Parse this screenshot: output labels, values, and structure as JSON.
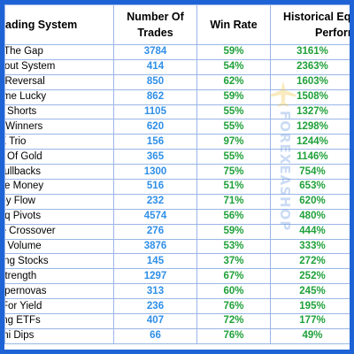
{
  "header": {
    "name": "ading System",
    "trades_line1": "Number Of",
    "trades_line2": "Trades",
    "win": "Win Rate",
    "perf_line1": "Historical Equity",
    "perf_line2": "Performan"
  },
  "rows": [
    {
      "name": "rading The Gap",
      "trades": "3784",
      "win": "59%",
      "perf": "3161%"
    },
    {
      "name": "ete Breakout System",
      "trades": "414",
      "win": "54%",
      "perf": "2363%"
    },
    {
      "name": "ernight Reversal",
      "trades": "850",
      "win": "62%",
      "perf": "1603%"
    },
    {
      "name": "cond Time Lucky",
      "trades": "862",
      "win": "59%",
      "perf": "1508%"
    },
    {
      "name": "Micro Shorts",
      "trades": "1105",
      "win": "55%",
      "perf": "1327%"
    },
    {
      "name": "id Cap Winners",
      "trades": "620",
      "win": "55%",
      "perf": "1298%"
    },
    {
      "name": "VIX Trio",
      "trades": "156",
      "win": "97%",
      "perf": "1244%"
    },
    {
      "name": "uggets Of Gold",
      "trades": "365",
      "win": "55%",
      "perf": "1146%"
    },
    {
      "name": "ETF Pullbacks",
      "trades": "1300",
      "win": "75%",
      "perf": "754%"
    },
    {
      "name": "llow The Money",
      "trades": "516",
      "win": "51%",
      "perf": "653%"
    },
    {
      "name": "Money Flow",
      "trades": "232",
      "win": "71%",
      "perf": "620%"
    },
    {
      "name": "Nasdaq Pivots",
      "trades": "4574",
      "win": "56%",
      "perf": "480%"
    },
    {
      "name": "g Average Crossover",
      "trades": "276",
      "win": "59%",
      "perf": "444%"
    },
    {
      "name": "nusual Volume",
      "trades": "3876",
      "win": "53%",
      "perf": "333%"
    },
    {
      "name": "rry Picking Stocks",
      "trades": "145",
      "win": "37%",
      "perf": "272%"
    },
    {
      "name": "Bar Strength",
      "trades": "1297",
      "win": "67%",
      "perf": "252%"
    },
    {
      "name": "rting Supernovas",
      "trades": "313",
      "win": "60%",
      "perf": "245%"
    },
    {
      "name": "ading For Yield",
      "trades": "236",
      "win": "76%",
      "perf": "195%"
    },
    {
      "name": "Shorting ETFs",
      "trades": "407",
      "win": "72%",
      "perf": "177%"
    },
    {
      "name": "E-Mini Dips",
      "trades": "66",
      "win": "76%",
      "perf": "49%"
    }
  ],
  "watermark": {
    "text": "FOREXEASHOP",
    "icon": "airplane-icon"
  },
  "colors": {
    "border": "#1e63d6",
    "trades": "#2f8fe8",
    "green": "#20a13a",
    "grid": "#9ab6e6"
  }
}
